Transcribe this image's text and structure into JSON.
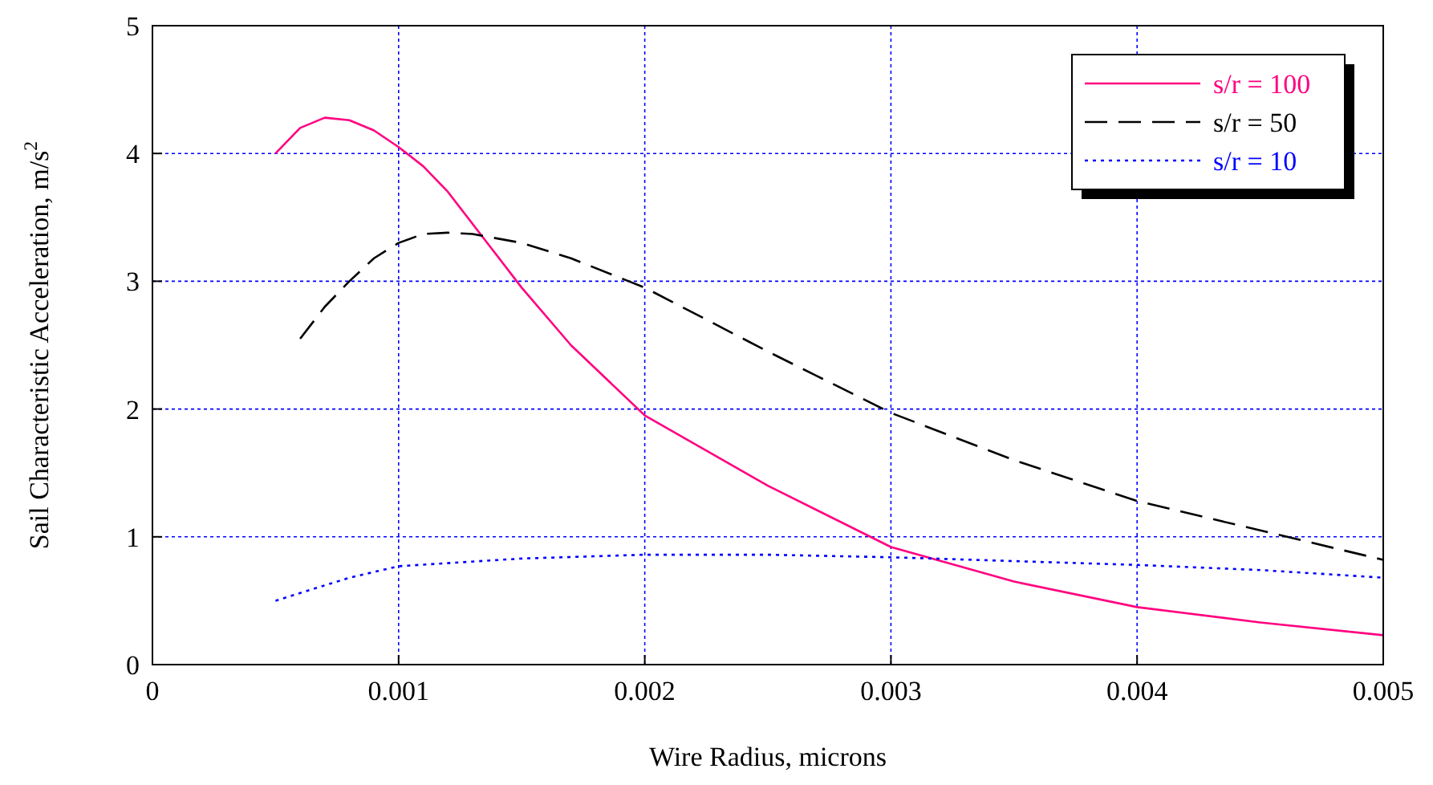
{
  "chart_data": {
    "type": "line",
    "xlabel": "Wire Radius, microns",
    "ylabel": "Sail Characteristic Acceleration, m/s$^{2}$",
    "xlim": [
      0,
      0.005
    ],
    "ylim": [
      0,
      5
    ],
    "xticks": [
      0,
      0.001,
      0.002,
      0.003,
      0.004,
      0.005
    ],
    "yticks": [
      0,
      1,
      2,
      3,
      4,
      5
    ],
    "grid": true,
    "legend": "top right",
    "series": [
      {
        "name": "s/r = 100",
        "color": "#ff0080",
        "line_style": "solid",
        "x": [
          0.0005,
          0.0006,
          0.0007,
          0.0008,
          0.0009,
          0.001,
          0.0011,
          0.0012,
          0.0013,
          0.0014,
          0.0015,
          0.0017,
          0.002,
          0.0025,
          0.003,
          0.0035,
          0.004,
          0.0045,
          0.005
        ],
        "values": [
          4.0,
          4.2,
          4.28,
          4.26,
          4.18,
          4.05,
          3.9,
          3.7,
          3.45,
          3.2,
          2.95,
          2.5,
          1.95,
          1.4,
          0.92,
          0.65,
          0.45,
          0.33,
          0.23
        ]
      },
      {
        "name": "s/r = 50",
        "color": "#000000",
        "line_style": "dashed",
        "x": [
          0.0006,
          0.0007,
          0.0008,
          0.0009,
          0.001,
          0.0011,
          0.0012,
          0.0013,
          0.0015,
          0.0017,
          0.002,
          0.0025,
          0.003,
          0.0035,
          0.004,
          0.0045,
          0.005
        ],
        "values": [
          2.55,
          2.8,
          3.0,
          3.18,
          3.3,
          3.37,
          3.38,
          3.37,
          3.3,
          3.18,
          2.95,
          2.45,
          1.97,
          1.6,
          1.28,
          1.05,
          0.82
        ]
      },
      {
        "name": "s/r = 10",
        "color": "#0000ff",
        "line_style": "dotted",
        "x": [
          0.0005,
          0.0008,
          0.001,
          0.0015,
          0.002,
          0.0025,
          0.003,
          0.0035,
          0.004,
          0.0045,
          0.005
        ],
        "values": [
          0.5,
          0.68,
          0.77,
          0.83,
          0.86,
          0.86,
          0.84,
          0.81,
          0.78,
          0.74,
          0.68
        ]
      }
    ]
  }
}
